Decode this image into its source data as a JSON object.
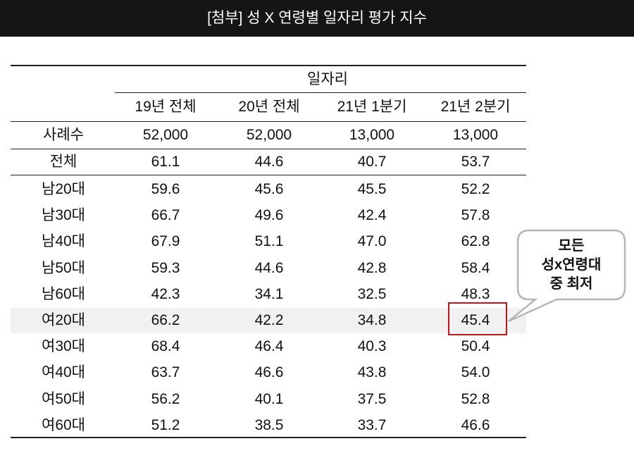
{
  "header": {
    "title": "[첨부] 성 X 연령별 일자리 평가 지수"
  },
  "table": {
    "group_header": "일자리",
    "columns": [
      "19년 전체",
      "20년 전체",
      "21년 1분기",
      "21년 2분기"
    ],
    "summary_rows": [
      [
        "사례수",
        "52,000",
        "52,000",
        "13,000",
        "13,000"
      ],
      [
        "전체",
        "61.1",
        "44.6",
        "40.7",
        "53.7"
      ]
    ],
    "rows": [
      [
        "남20대",
        "59.6",
        "45.6",
        "45.5",
        "52.2"
      ],
      [
        "남30대",
        "66.7",
        "49.6",
        "42.4",
        "57.8"
      ],
      [
        "남40대",
        "67.9",
        "51.1",
        "47.0",
        "62.8"
      ],
      [
        "남50대",
        "59.3",
        "44.6",
        "42.8",
        "58.4"
      ],
      [
        "남60대",
        "42.3",
        "34.1",
        "32.5",
        "48.3"
      ],
      [
        "여20대",
        "66.2",
        "42.2",
        "34.8",
        "45.4"
      ],
      [
        "여30대",
        "68.4",
        "46.4",
        "40.3",
        "50.4"
      ],
      [
        "여40대",
        "63.7",
        "46.6",
        "43.8",
        "54.0"
      ],
      [
        "여50대",
        "56.2",
        "40.1",
        "37.5",
        "52.8"
      ],
      [
        "여60대",
        "51.2",
        "38.5",
        "33.7",
        "46.6"
      ]
    ]
  },
  "callout": {
    "lines": [
      "모든",
      "성x연령대",
      "중 최저"
    ]
  }
}
